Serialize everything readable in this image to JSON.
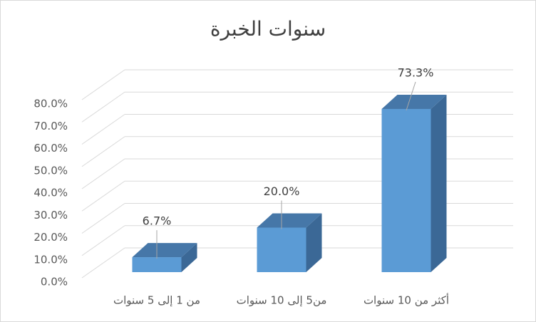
{
  "chart_data": {
    "type": "bar3d",
    "title": "سنوات الخبرة",
    "categories": [
      "من 1 إلى 5 سنوات",
      "من5 إلى 10 سنوات",
      "أكثر من 10 سنوات"
    ],
    "values": [
      6.7,
      20.0,
      73.3
    ],
    "value_labels": [
      "6.7%",
      "20.0%",
      "73.3%"
    ],
    "color": "#5b9bd5",
    "ylim": [
      0,
      80
    ],
    "yticks": [
      {
        "value": 0,
        "label": "0.0%"
      },
      {
        "value": 10,
        "label": "10.0%"
      },
      {
        "value": 20,
        "label": "20.0%"
      },
      {
        "value": 30,
        "label": "30.0%"
      },
      {
        "value": 40,
        "label": "40.0%"
      },
      {
        "value": 50,
        "label": "50.0%"
      },
      {
        "value": 60,
        "label": "60.0%"
      },
      {
        "value": 70,
        "label": "70.0%"
      },
      {
        "value": 80,
        "label": "80.0%"
      }
    ],
    "grid": true
  }
}
